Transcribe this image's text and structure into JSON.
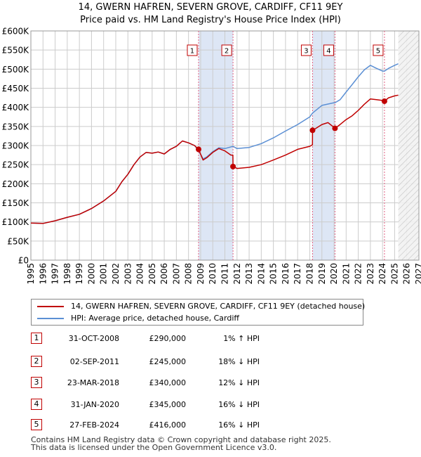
{
  "header": {
    "title_line1": "14, GWERN HAFREN, SEVERN GROVE, CARDIFF, CF11 9EY",
    "title_line2": "Price paid vs. HM Land Registry's House Price Index (HPI)"
  },
  "colors": {
    "price_line": "#c00000",
    "hpi_line": "#5b8fd4",
    "band": "#dde6f5",
    "grid": "#cccccc",
    "marker_dash": "#e06080"
  },
  "chart_data": {
    "type": "line",
    "title": "Price paid vs. HM Land Registry's House Price Index (HPI)",
    "xlabel": "",
    "ylabel": "",
    "xlim": [
      1995,
      2027
    ],
    "ylim": [
      0,
      600000
    ],
    "x_ticks": [
      1995,
      1996,
      1997,
      1998,
      1999,
      2000,
      2001,
      2002,
      2003,
      2004,
      2005,
      2006,
      2007,
      2008,
      2009,
      2010,
      2011,
      2012,
      2013,
      2014,
      2015,
      2016,
      2017,
      2018,
      2019,
      2020,
      2021,
      2022,
      2023,
      2024,
      2025,
      2026,
      2027
    ],
    "y_ticks": [
      0,
      50000,
      100000,
      150000,
      200000,
      250000,
      300000,
      350000,
      400000,
      450000,
      500000,
      550000,
      600000
    ],
    "y_tick_labels": [
      "£0",
      "£50K",
      "£100K",
      "£150K",
      "£200K",
      "£250K",
      "£300K",
      "£350K",
      "£400K",
      "£450K",
      "£500K",
      "£550K",
      "£600K"
    ],
    "grid": true,
    "hatched_from": 2025.3,
    "shaded_spans": [
      [
        2008.83,
        2011.67
      ],
      [
        2018.23,
        2020.08
      ]
    ],
    "series": [
      {
        "name": "14, GWERN HAFREN, SEVERN GROVE, CARDIFF, CF11 9EY (detached house)",
        "x": [
          1995.0,
          1996.0,
          1997.0,
          1998.0,
          1999.0,
          2000.0,
          2001.0,
          2002.0,
          2002.5,
          2003.0,
          2003.5,
          2004.0,
          2004.5,
          2005.0,
          2005.5,
          2006.0,
          2006.5,
          2007.0,
          2007.5,
          2008.0,
          2008.5,
          2008.83,
          2009.2,
          2009.5,
          2010.0,
          2010.5,
          2011.0,
          2011.5,
          2011.66,
          2011.67,
          2012.0,
          2013.0,
          2014.0,
          2015.0,
          2016.0,
          2017.0,
          2018.0,
          2018.22,
          2018.23,
          2018.5,
          2019.0,
          2019.5,
          2019.9,
          2020.08,
          2020.5,
          2021.0,
          2021.5,
          2022.0,
          2022.5,
          2023.0,
          2023.5,
          2024.0,
          2024.16,
          2024.5,
          2025.0,
          2025.3
        ],
        "y": [
          97000,
          96000,
          103000,
          112000,
          120000,
          135000,
          155000,
          180000,
          205000,
          225000,
          250000,
          270000,
          282000,
          280000,
          283000,
          278000,
          290000,
          298000,
          312000,
          307000,
          300000,
          290000,
          262000,
          268000,
          282000,
          292000,
          286000,
          275000,
          275000,
          245000,
          240000,
          243000,
          250000,
          262000,
          275000,
          290000,
          298000,
          302000,
          340000,
          345000,
          355000,
          360000,
          350000,
          345000,
          355000,
          368000,
          378000,
          392000,
          408000,
          422000,
          420000,
          418000,
          416000,
          425000,
          430000,
          432000
        ]
      },
      {
        "name": "HPI: Average price, detached house, Cardiff",
        "x": [
          1995.0,
          1996.0,
          1997.0,
          1998.0,
          1999.0,
          2000.0,
          2001.0,
          2002.0,
          2002.5,
          2003.0,
          2003.5,
          2004.0,
          2004.5,
          2005.0,
          2005.5,
          2006.0,
          2006.5,
          2007.0,
          2007.5,
          2008.0,
          2008.5,
          2008.83,
          2009.2,
          2009.5,
          2010.0,
          2010.5,
          2011.0,
          2011.67,
          2012.0,
          2013.0,
          2014.0,
          2015.0,
          2016.0,
          2017.0,
          2018.0,
          2018.23,
          2019.0,
          2020.0,
          2020.08,
          2020.5,
          2021.0,
          2021.5,
          2022.0,
          2022.5,
          2023.0,
          2023.5,
          2024.0,
          2024.16,
          2024.5,
          2025.0,
          2025.3
        ],
        "y": [
          97000,
          96000,
          103000,
          112000,
          120000,
          135000,
          155000,
          180000,
          205000,
          225000,
          250000,
          270000,
          282000,
          280000,
          283000,
          278000,
          290000,
          298000,
          312000,
          307000,
          300000,
          287000,
          265000,
          270000,
          284000,
          294000,
          292000,
          298000,
          292000,
          295000,
          305000,
          320000,
          338000,
          355000,
          375000,
          385000,
          405000,
          412000,
          412000,
          420000,
          440000,
          460000,
          480000,
          498000,
          510000,
          502000,
          495000,
          495000,
          502000,
          510000,
          514000
        ]
      }
    ],
    "sales": [
      {
        "label": "1",
        "x": 2008.83,
        "value": 290000
      },
      {
        "label": "2",
        "x": 2011.67,
        "value": 245000
      },
      {
        "label": "3",
        "x": 2018.23,
        "value": 340000
      },
      {
        "label": "4",
        "x": 2020.08,
        "value": 345000
      },
      {
        "label": "5",
        "x": 2024.16,
        "value": 416000
      }
    ]
  },
  "legend": {
    "price_label": "14, GWERN HAFREN, SEVERN GROVE, CARDIFF, CF11 9EY (detached house)",
    "hpi_label": "HPI: Average price, detached house, Cardiff"
  },
  "transactions": [
    {
      "num": "1",
      "date": "31-OCT-2008",
      "price": "£290,000",
      "hpi": "1% ↑ HPI"
    },
    {
      "num": "2",
      "date": "02-SEP-2011",
      "price": "£245,000",
      "hpi": "18% ↓ HPI"
    },
    {
      "num": "3",
      "date": "23-MAR-2018",
      "price": "£340,000",
      "hpi": "12% ↓ HPI"
    },
    {
      "num": "4",
      "date": "31-JAN-2020",
      "price": "£345,000",
      "hpi": "16% ↓ HPI"
    },
    {
      "num": "5",
      "date": "27-FEB-2024",
      "price": "£416,000",
      "hpi": "16% ↓ HPI"
    }
  ],
  "footer": {
    "line1": "Contains HM Land Registry data © Crown copyright and database right 2025.",
    "line2": "This data is licensed under the Open Government Licence v3.0."
  }
}
